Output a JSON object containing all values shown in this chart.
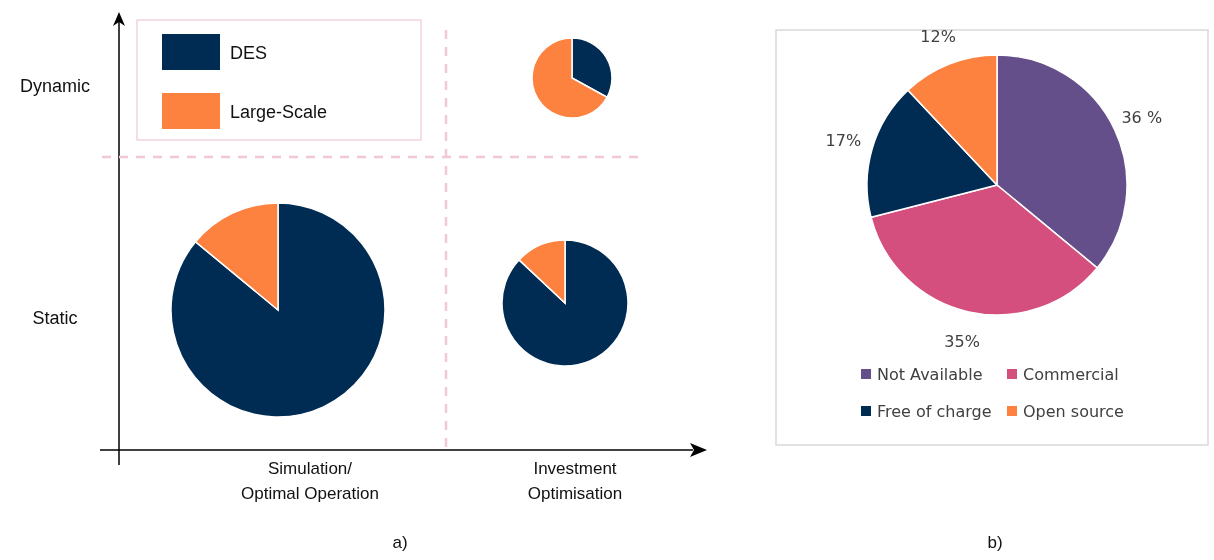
{
  "chart_data": [
    {
      "type": "pie",
      "categories": [
        null,
        null
      ],
      "values": [
        33,
        67
      ],
      "colors": [
        "#002c54",
        "#fd8240"
      ],
      "ylabel": "Dynamic"
    },
    {
      "type": "pie",
      "categories": [
        "DES",
        "Large-Scale"
      ],
      "values": [
        86,
        14
      ],
      "colors": [
        "#002c54",
        "#fd8240"
      ],
      "ylabel": "Static",
      "xlabel": "Simulation/\nOptimal Operation",
      "legend": "top",
      "annotations": [
        "a)"
      ]
    },
    {
      "type": "pie",
      "categories": [
        null,
        null
      ],
      "values": [
        87,
        13
      ],
      "colors": [
        "#002c54",
        "#fd8240"
      ],
      "xlabel": "Investment\nOptimisation"
    },
    {
      "type": "pie",
      "categories": [
        "Not Available",
        "Commercial",
        "Free of charge",
        "Open source"
      ],
      "values": [
        36,
        35,
        17,
        12
      ],
      "colors": [
        "#654f8a",
        "#d44f7e",
        "#002c54",
        "#fd8240"
      ],
      "value_labels": [
        "36 %",
        "35%",
        "17%",
        "12%"
      ],
      "legend": "bottom",
      "annotations": [
        "b)"
      ]
    }
  ]
}
